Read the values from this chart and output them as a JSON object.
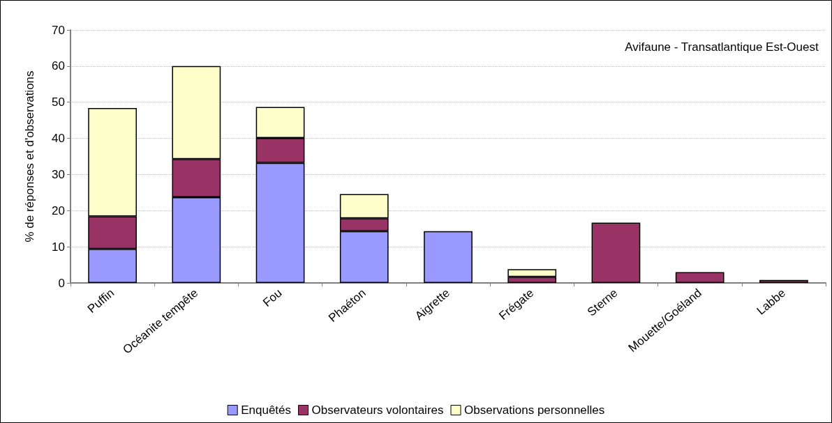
{
  "chart_data": {
    "type": "bar",
    "stacked": true,
    "ylabel": "% de réponses et d'observations",
    "annotations": [
      "Avifaune - Transatlantique Est-Ouest"
    ],
    "categories": [
      "Puffin",
      "Océanite tempête",
      "Fou",
      "Phaéton",
      "Aigrette",
      "Frégate",
      "Sterne",
      "Mouette/Goéland",
      "Labbe"
    ],
    "series": [
      {
        "name": "Enquêtés",
        "color": "#9999ff",
        "values": [
          9.4,
          23.7,
          33.2,
          14.3,
          14.3,
          null,
          null,
          null,
          null
        ]
      },
      {
        "name": "Observateurs volontaires",
        "color": "#993366",
        "values": [
          9.0,
          10.6,
          6.9,
          3.6,
          null,
          1.7,
          16.7,
          3.0,
          0.8
        ]
      },
      {
        "name": "Observations personnelles",
        "color": "#ffffcc",
        "values": [
          30.0,
          25.7,
          8.6,
          6.7,
          null,
          2.1,
          null,
          null,
          null
        ]
      }
    ],
    "ylim": [
      0,
      70
    ],
    "yticks": [
      0,
      10,
      20,
      30,
      40,
      50,
      60,
      70
    ],
    "grid": "y",
    "legend": "bottom"
  }
}
